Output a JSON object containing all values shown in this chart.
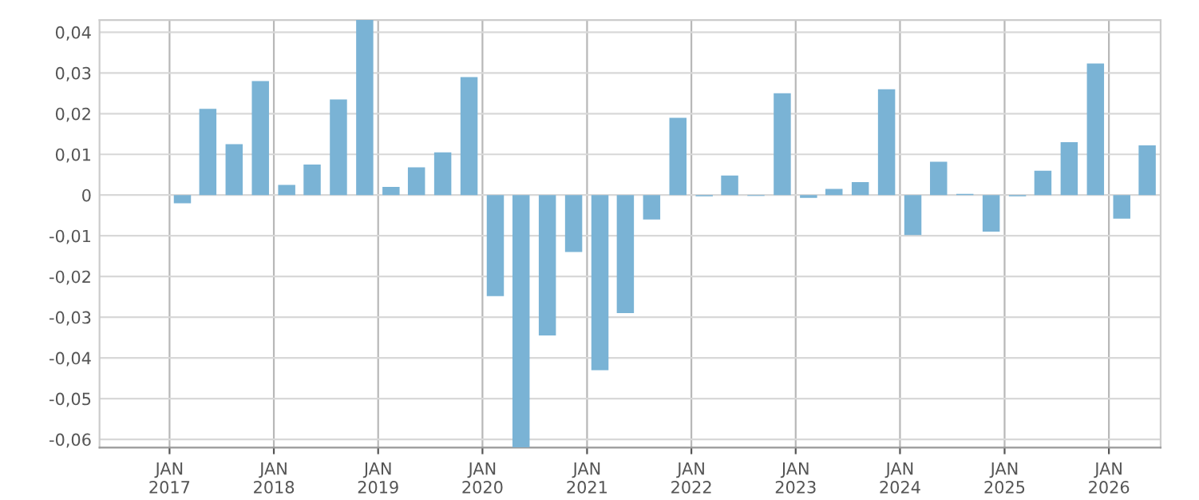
{
  "chart_data": {
    "type": "bar",
    "color": "#7ab3d5",
    "x": [
      "2017-02-15",
      "2017-05-15",
      "2017-08-15",
      "2017-11-15",
      "2018-02-15",
      "2018-05-15",
      "2018-08-15",
      "2018-11-15",
      "2019-02-15",
      "2019-05-15",
      "2019-08-15",
      "2019-11-15",
      "2020-02-15",
      "2020-05-15",
      "2020-08-15",
      "2020-11-15",
      "2021-02-15",
      "2021-05-15",
      "2021-08-15",
      "2021-11-15",
      "2022-02-15",
      "2022-05-15",
      "2022-08-15",
      "2022-11-15",
      "2023-02-15",
      "2023-05-15",
      "2023-08-15",
      "2023-11-15",
      "2024-02-15",
      "2024-05-15",
      "2024-08-15",
      "2024-11-15",
      "2025-02-15",
      "2025-05-15",
      "2025-08-15",
      "2025-11-15",
      "2026-02-15",
      "2026-05-15"
    ],
    "values": [
      -0.002,
      0.0212,
      0.0125,
      0.028,
      0.0025,
      0.0075,
      0.0235,
      0.043,
      0.002,
      0.0068,
      0.0105,
      0.029,
      -0.0248,
      -0.062,
      -0.0345,
      -0.014,
      -0.043,
      -0.029,
      -0.006,
      0.019,
      -0.0003,
      0.0048,
      -0.0002,
      0.025,
      -0.0007,
      0.0015,
      0.0032,
      0.026,
      -0.0098,
      0.0082,
      0.0003,
      -0.009,
      -0.0003,
      0.006,
      0.013,
      0.0323,
      -0.0058,
      0.0122
    ],
    "xlim": [
      "2016-05-01",
      "2026-07-01"
    ],
    "xticks": [
      {
        "value": "2017-01-01",
        "label": "JAN\n2017"
      },
      {
        "value": "2018-01-01",
        "label": "JAN\n2018"
      },
      {
        "value": "2019-01-01",
        "label": "JAN\n2019"
      },
      {
        "value": "2020-01-01",
        "label": "JAN\n2020"
      },
      {
        "value": "2021-01-01",
        "label": "JAN\n2021"
      },
      {
        "value": "2022-01-01",
        "label": "JAN\n2022"
      },
      {
        "value": "2023-01-01",
        "label": "JAN\n2023"
      },
      {
        "value": "2024-01-01",
        "label": "JAN\n2024"
      },
      {
        "value": "2025-01-01",
        "label": "JAN\n2025"
      },
      {
        "value": "2026-01-01",
        "label": "JAN\n2026"
      }
    ],
    "ylim": [
      -0.062,
      0.043
    ],
    "yticks": [
      {
        "value": 0.04,
        "label": "0,04"
      },
      {
        "value": 0.03,
        "label": "0,03"
      },
      {
        "value": 0.02,
        "label": "0,02"
      },
      {
        "value": 0.01,
        "label": "0,01"
      },
      {
        "value": 0,
        "label": "0"
      },
      {
        "value": -0.01,
        "label": "-0,01"
      },
      {
        "value": -0.02,
        "label": "-0,02"
      },
      {
        "value": -0.03,
        "label": "-0,03"
      },
      {
        "value": -0.04,
        "label": "-0,04"
      },
      {
        "value": -0.05,
        "label": "-0,05"
      },
      {
        "value": -0.06,
        "label": "-0,06"
      }
    ],
    "grid": true
  }
}
